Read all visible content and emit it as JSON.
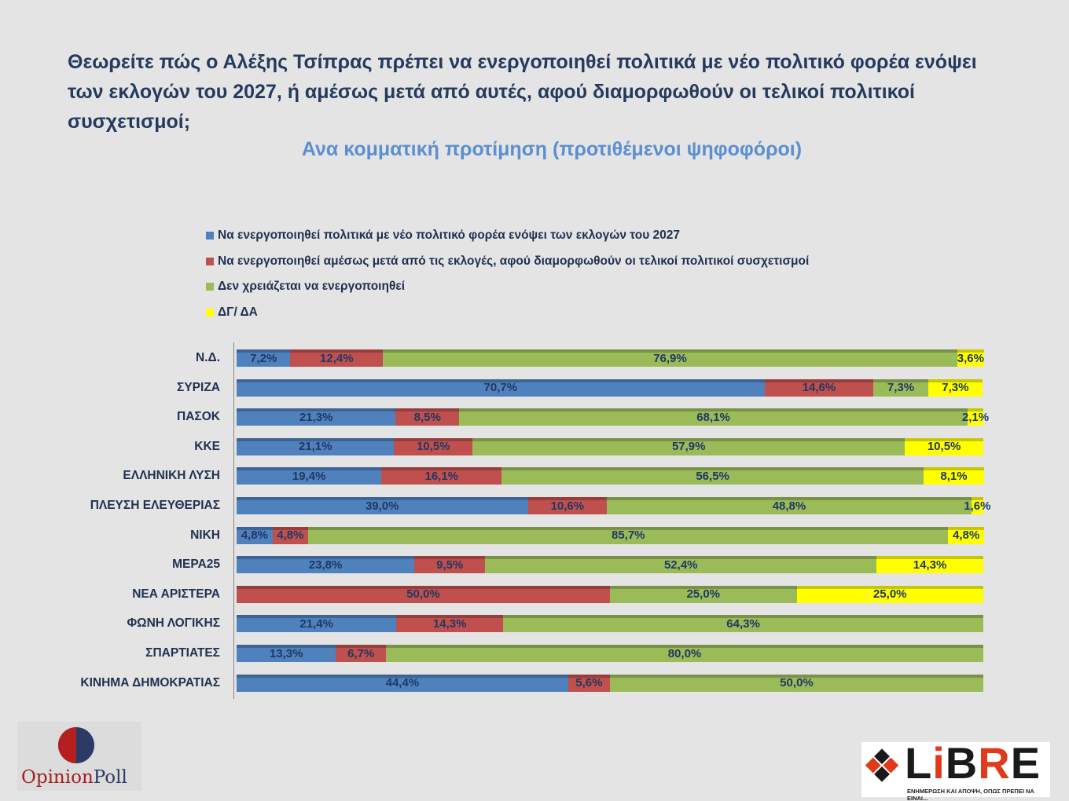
{
  "chart_data": {
    "type": "bar",
    "stacked": true,
    "orientation": "horizontal",
    "title": "Θεωρείτε πώς ο Αλέξης Τσίπρας πρέπει να ενεργοποιηθεί πολιτικά με νέο πολιτικό φορέα ενόψει των εκλογών του 2027, ή αμέσως μετά από αυτές, αφού διαμορφωθούν οι τελικοί πολιτικοί συσχετισμοί;",
    "subtitle": "Ανα κομματική προτίμηση (προτιθέμενοι ψηφοφόροι)",
    "xlim": [
      0,
      100
    ],
    "legend_position": "top",
    "categories": [
      "Ν.Δ.",
      "ΣΥΡΙΖΑ",
      "ΠΑΣΟΚ",
      "ΚΚΕ",
      "ΕΛΛΗΝΙΚΗ ΛΥΣΗ",
      "ΠΛΕΥΣΗ ΕΛΕΥΘΕΡΙΑΣ",
      "ΝΙΚΗ",
      "ΜΕΡΑ25",
      "ΝΕΑ ΑΡΙΣΤΕΡΑ",
      "ΦΩΝΗ ΛΟΓΙΚΗΣ",
      "ΣΠΑΡΤΙΑΤΕΣ",
      "ΚΙΝΗΜΑ ΔΗΜΟΚΡΑΤΙΑΣ"
    ],
    "series": [
      {
        "name": "Να ενεργοποιηθεί πολιτικά με νέο πολιτικό φορέα ενόψει των εκλογών του 2027",
        "color": "#4f81bd",
        "values": [
          7.2,
          70.7,
          21.3,
          21.1,
          19.4,
          39.0,
          4.8,
          23.8,
          0,
          21.4,
          13.3,
          44.4
        ]
      },
      {
        "name": "Να ενεργοποιηθεί αμέσως μετά από τις εκλογές, αφού διαμορφωθούν οι τελικοί πολιτικοί συσχετισμοί",
        "color": "#c0504d",
        "values": [
          12.4,
          14.6,
          8.5,
          10.5,
          16.1,
          10.6,
          4.8,
          9.5,
          50.0,
          14.3,
          6.7,
          5.6
        ]
      },
      {
        "name": "Δεν χρειάζεται να ενεργοποιηθεί",
        "color": "#9bbb59",
        "values": [
          76.9,
          7.3,
          68.1,
          57.9,
          56.5,
          48.8,
          85.7,
          52.4,
          25.0,
          64.3,
          80.0,
          50.0
        ]
      },
      {
        "name": "ΔΓ/ ΔΑ",
        "color": "#ffff00",
        "values": [
          3.6,
          7.3,
          2.1,
          10.5,
          8.1,
          1.6,
          4.8,
          14.3,
          25.0,
          0,
          0,
          0
        ]
      }
    ]
  },
  "logos": {
    "left": "OpinionPoll",
    "right": "LiBRE",
    "right_tagline": "ΕΝΗΜΕΡΩΣΗ ΚΑΙ ΑΠΟΨΗ, ΟΠΩΣ ΠΡΕΠΕΙ ΝΑ ΕΙΝΑΙ..."
  }
}
